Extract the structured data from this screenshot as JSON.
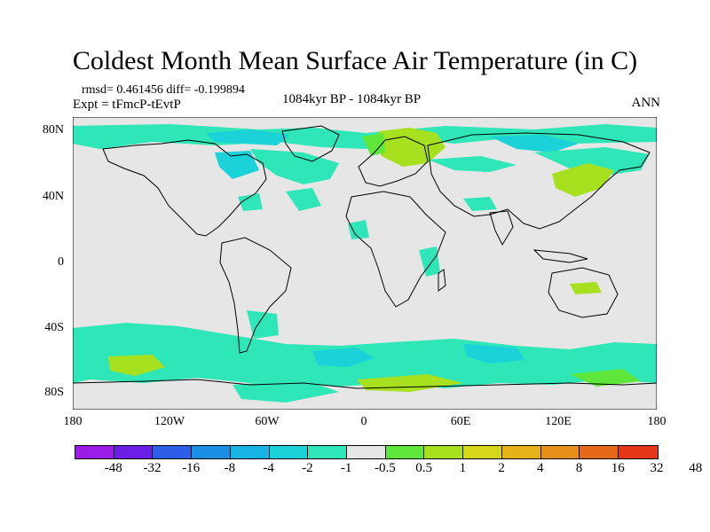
{
  "title": "Coldest Month Mean Surface Air Temperature (in C)",
  "stats_text": "rmsd= 0.461456 diff= -0.199894",
  "experiment": "Expt = tFmcP-tEvtP",
  "period": "1084kyr BP - 1084kyr BP",
  "season": "ANN",
  "map": {
    "lat_range": [
      -90,
      90
    ],
    "lon_range": [
      -180,
      180
    ],
    "lat_ticks": [
      "80N",
      "40N",
      "0",
      "40S",
      "80S"
    ],
    "lat_tick_values": [
      80,
      40,
      0,
      -40,
      -80
    ],
    "lon_ticks": [
      "180",
      "120W",
      "60W",
      "0",
      "60E",
      "120E",
      "180"
    ],
    "lon_tick_values": [
      -180,
      -120,
      -60,
      0,
      60,
      120,
      180
    ],
    "background_color": "#e6e6e6",
    "coastline_color": "#000000"
  },
  "colorbar": {
    "colors": [
      "#9a1ce6",
      "#6a1ee6",
      "#2e5ee8",
      "#1b8ee6",
      "#18b4e6",
      "#1ad2d8",
      "#2ee6b8",
      "#e6e6e6",
      "#5ee63a",
      "#a6e01e",
      "#d6d61a",
      "#e6b21a",
      "#e6901a",
      "#e6681a",
      "#e6361a"
    ],
    "labels": [
      "-48",
      "-32",
      "-16",
      "-8",
      "-4",
      "-2",
      "-1",
      "-0.5",
      "0.5",
      "1",
      "2",
      "4",
      "8",
      "16",
      "32",
      "48"
    ]
  }
}
